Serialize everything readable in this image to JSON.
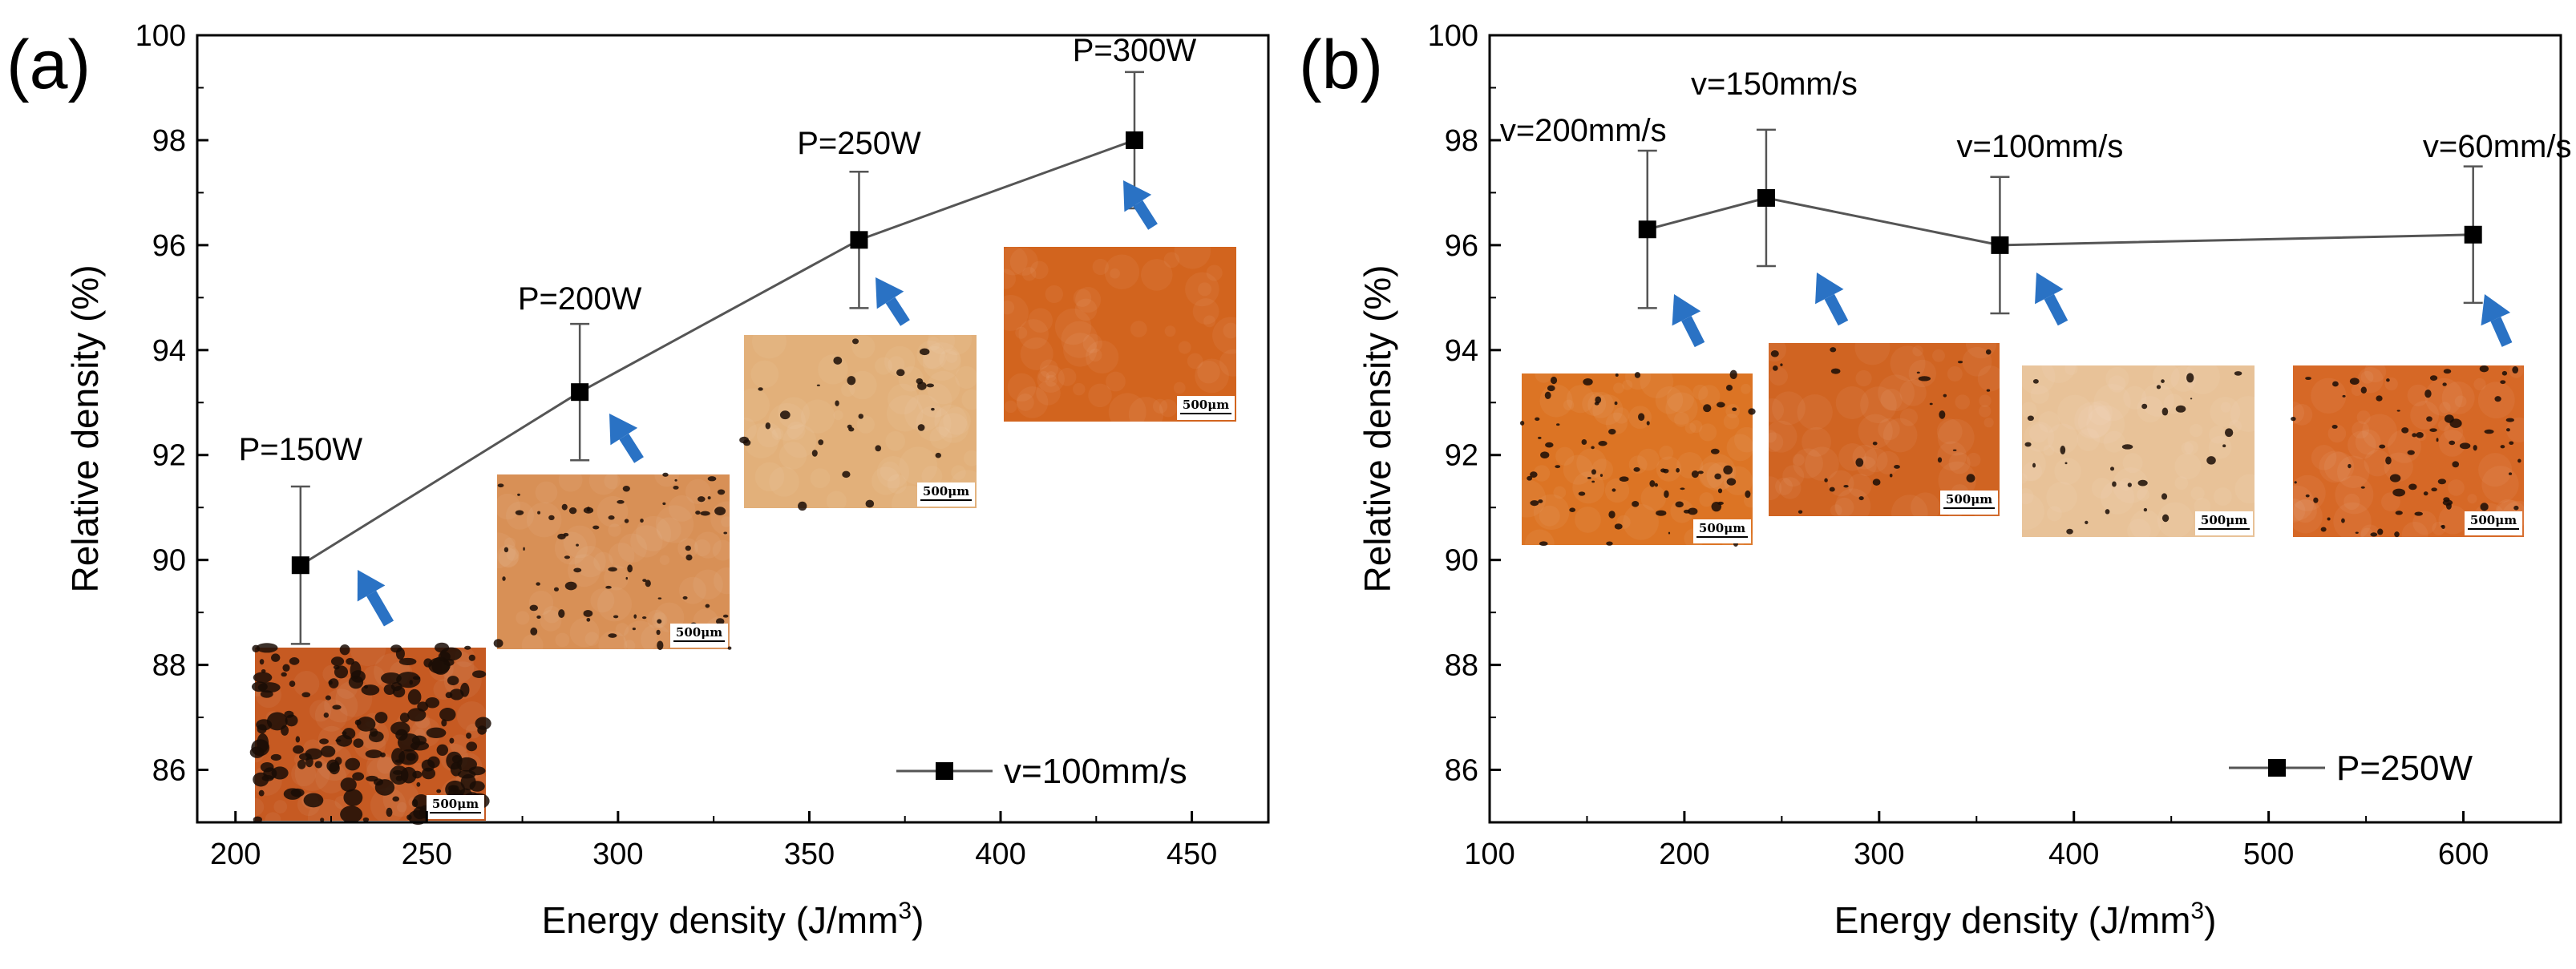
{
  "chart_data": [
    {
      "type": "scatter",
      "panel_label": "(a)",
      "xlabel": "Energy density (J/mm",
      "xlabel_sup": "3",
      "xlabel_close": ")",
      "ylabel": "Relative density (%)",
      "xlim": [
        190,
        470
      ],
      "ylim": [
        85,
        100
      ],
      "xticks": [
        200,
        250,
        300,
        350,
        400,
        450
      ],
      "yticks": [
        86,
        88,
        90,
        92,
        94,
        96,
        98,
        100
      ],
      "series": [
        {
          "name": "v=100mm/s",
          "x": [
            217,
            290,
            363,
            435
          ],
          "y": [
            89.9,
            93.2,
            96.1,
            98.0
          ],
          "err": [
            1.5,
            1.3,
            1.3,
            1.3
          ]
        }
      ],
      "annotations": [
        {
          "text": "P=150W",
          "x": 217
        },
        {
          "text": "P=200W",
          "x": 290
        },
        {
          "text": "P=250W",
          "x": 363
        },
        {
          "text": "P=300W",
          "x": 435
        }
      ],
      "micrographs": [
        {
          "scale": "500μm",
          "color": "#c65a22",
          "porosity": "high"
        },
        {
          "scale": "500μm",
          "color": "#d89056",
          "porosity": "medium"
        },
        {
          "scale": "500μm",
          "color": "#e2b07a",
          "porosity": "low"
        },
        {
          "scale": "500μm",
          "color": "#d2641e",
          "porosity": "none"
        }
      ],
      "legend": {
        "label": "v=100mm/s",
        "position": "bottom-right"
      }
    },
    {
      "type": "scatter",
      "panel_label": "(b)",
      "xlabel": "Energy density (J/mm",
      "xlabel_sup": "3",
      "xlabel_close": ")",
      "ylabel": "Relative density (%)",
      "xlim": [
        100,
        650
      ],
      "ylim": [
        85,
        100
      ],
      "xticks": [
        100,
        200,
        300,
        400,
        500,
        600
      ],
      "yticks": [
        86,
        88,
        90,
        92,
        94,
        96,
        98,
        100
      ],
      "series": [
        {
          "name": "P=250W",
          "x": [
            181,
            242,
            362,
            605
          ],
          "y": [
            96.3,
            96.9,
            96.0,
            96.2
          ],
          "err": [
            1.5,
            1.3,
            1.3,
            1.3
          ]
        }
      ],
      "annotations": [
        {
          "text": "v=200mm/s",
          "x": 181
        },
        {
          "text": "v=150mm/s",
          "x": 242
        },
        {
          "text": "v=100mm/s",
          "x": 362
        },
        {
          "text": "v=60mm/s",
          "x": 605
        }
      ],
      "micrographs": [
        {
          "scale": "500μm",
          "color": "#dc7424",
          "porosity": "medium"
        },
        {
          "scale": "500μm",
          "color": "#d06422",
          "porosity": "low"
        },
        {
          "scale": "500μm",
          "color": "#e8c298",
          "porosity": "low"
        },
        {
          "scale": "500μm",
          "color": "#d66826",
          "porosity": "medium"
        }
      ],
      "legend": {
        "label": "P=250W",
        "position": "bottom-right"
      }
    }
  ],
  "colors": {
    "line": "#555555",
    "marker": "#000000",
    "arrow": "#2a72c4",
    "pore": "#1a0d06"
  }
}
